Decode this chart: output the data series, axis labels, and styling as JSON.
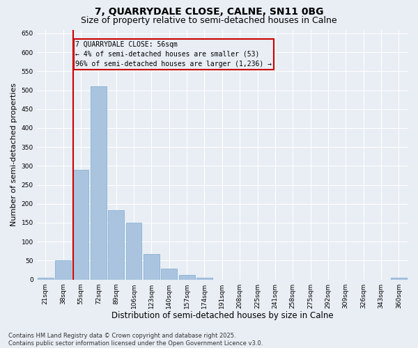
{
  "title_line1": "7, QUARRYDALE CLOSE, CALNE, SN11 0BG",
  "title_line2": "Size of property relative to semi-detached houses in Calne",
  "xlabel": "Distribution of semi-detached houses by size in Calne",
  "ylabel": "Number of semi-detached properties",
  "categories": [
    "21sqm",
    "38sqm",
    "55sqm",
    "72sqm",
    "89sqm",
    "106sqm",
    "123sqm",
    "140sqm",
    "157sqm",
    "174sqm",
    "191sqm",
    "208sqm",
    "225sqm",
    "241sqm",
    "258sqm",
    "275sqm",
    "292sqm",
    "309sqm",
    "326sqm",
    "343sqm",
    "360sqm"
  ],
  "values": [
    5,
    50,
    290,
    510,
    183,
    150,
    68,
    28,
    12,
    5,
    0,
    0,
    0,
    0,
    0,
    0,
    0,
    0,
    0,
    0,
    4
  ],
  "bar_color": "#aac4e0",
  "bar_edge_color": "#7aaace",
  "highlight_bar_index": 2,
  "highlight_color": "#cc0000",
  "ylim": [
    0,
    660
  ],
  "yticks": [
    0,
    50,
    100,
    150,
    200,
    250,
    300,
    350,
    400,
    450,
    500,
    550,
    600,
    650
  ],
  "annotation_title": "7 QUARRYDALE CLOSE: 56sqm",
  "annotation_line1": "← 4% of semi-detached houses are smaller (53)",
  "annotation_line2": "96% of semi-detached houses are larger (1,236) →",
  "annotation_box_color": "#cc0000",
  "footer_line1": "Contains HM Land Registry data © Crown copyright and database right 2025.",
  "footer_line2": "Contains public sector information licensed under the Open Government Licence v3.0.",
  "background_color": "#e8eef4",
  "grid_color": "#ffffff",
  "title_fontsize": 10,
  "subtitle_fontsize": 9,
  "tick_fontsize": 6.5,
  "ylabel_fontsize": 8,
  "xlabel_fontsize": 8.5,
  "footer_fontsize": 6,
  "ann_fontsize": 7
}
